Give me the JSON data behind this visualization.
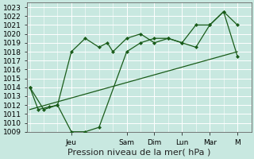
{
  "background_color": "#c8e8e0",
  "grid_color": "#ffffff",
  "line_color": "#1a5c1a",
  "marker_color": "#1a5c1a",
  "xlabel": "Pression niveau de la mer( hPa )",
  "ylim": [
    1009,
    1023.5
  ],
  "yticks": [
    1009,
    1010,
    1011,
    1012,
    1013,
    1014,
    1015,
    1016,
    1017,
    1018,
    1019,
    1020,
    1021,
    1022,
    1023
  ],
  "day_labels": [
    "Jeu",
    "Sam",
    "Dim",
    "Lun",
    "Mar",
    "M"
  ],
  "day_positions": [
    1.5,
    3.5,
    4.5,
    5.5,
    6.5,
    7.5
  ],
  "series1_x": [
    0,
    0.3,
    0.7,
    1.0,
    1.5,
    2.0,
    2.5,
    2.8,
    3.0,
    3.5,
    4.0,
    4.5,
    5.0,
    5.5,
    6.0,
    6.5,
    7.0,
    7.5
  ],
  "series1_y": [
    1014.0,
    1011.5,
    1011.8,
    1012.0,
    1018.0,
    1019.5,
    1018.5,
    1019.0,
    1018.0,
    1019.5,
    1020.0,
    1019.0,
    1019.5,
    1019.0,
    1018.5,
    1021.0,
    1022.5,
    1021.0
  ],
  "series2_x": [
    0,
    0.5,
    1.0,
    1.5,
    2.0,
    2.5,
    3.5,
    4.0,
    4.5,
    5.0,
    5.5,
    6.0,
    6.5,
    7.0,
    7.5
  ],
  "series2_y": [
    1014.0,
    1011.5,
    1012.0,
    1009.0,
    1009.0,
    1009.5,
    1018.0,
    1019.0,
    1019.5,
    1019.5,
    1019.0,
    1021.0,
    1021.0,
    1022.5,
    1017.5
  ],
  "series3_x": [
    0,
    7.5
  ],
  "series3_y": [
    1011.5,
    1018.0
  ],
  "xlim": [
    -0.1,
    8.0
  ],
  "font_size": 7.5,
  "tick_font_size": 6.5,
  "label_font_size": 8.0
}
